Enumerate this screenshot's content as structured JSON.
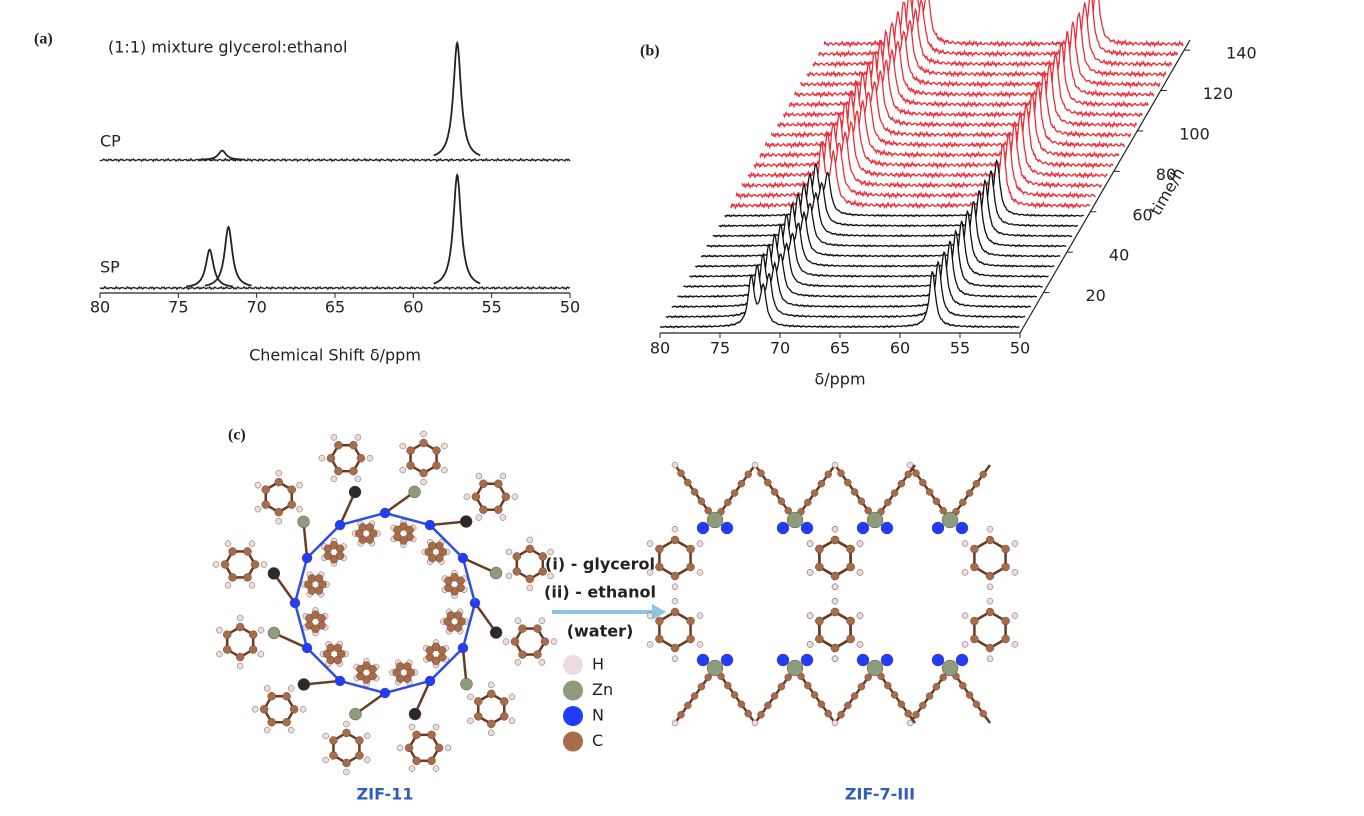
{
  "chart_data": [
    {
      "type": "line",
      "panel_label": "(a)",
      "title": "(1:1) mixture glycerol:ethanol",
      "x_label": "Chemical Shift δ/ppm",
      "xlim": [
        80,
        50
      ],
      "xticks": [
        80,
        75,
        70,
        65,
        60,
        55,
        50
      ],
      "series": [
        {
          "name": "CP",
          "color": "#222222",
          "x": [
            72.2,
            57.2
          ],
          "values": [
            0.08,
            1
          ]
        },
        {
          "name": "SP",
          "color": "#222222",
          "x": [
            73,
            71.8,
            57.2
          ],
          "values": [
            0.34,
            0.54,
            1
          ]
        }
      ]
    },
    {
      "type": "waterfall",
      "panel_label": "(b)",
      "x_label": "δ/ppm",
      "z_label": "time/h",
      "xlim": [
        80,
        50
      ],
      "xticks": [
        80,
        75,
        70,
        65,
        60,
        55,
        50
      ],
      "zlim": [
        0,
        145
      ],
      "zticks": [
        20,
        40,
        60,
        80,
        100,
        120,
        140
      ],
      "series": [
        {
          "color": "#111111",
          "x": [
            72.4,
            71.4,
            57.3
          ],
          "values": [
            0.75,
            0.6,
            0.85
          ],
          "times": [
            0,
            5,
            10,
            15,
            20,
            25,
            30,
            35,
            40,
            45,
            50,
            55
          ]
        },
        {
          "color": "#e8303a",
          "x": [
            72.4,
            71.4,
            57.3
          ],
          "values": [
            0.9,
            0.75,
            0.95
          ],
          "times": [
            60,
            65,
            70,
            75,
            80,
            85,
            90,
            95,
            100,
            105,
            110,
            115,
            120,
            125,
            130,
            135,
            140
          ]
        }
      ]
    }
  ],
  "diagram": {
    "panel_label": "(c)",
    "arrow_labels": [
      "(i) - glycerol",
      "(ii) - ethanol",
      "(water)"
    ],
    "legend": [
      {
        "label": "H",
        "color": "#ecdcdf"
      },
      {
        "label": "Zn",
        "color": "#8c9c7c"
      },
      {
        "label": "N",
        "color": "#1f3cff"
      },
      {
        "label": "C",
        "color": "#a86c48"
      }
    ],
    "left_label": "ZIF-11",
    "right_label": "ZIF-7-III"
  }
}
